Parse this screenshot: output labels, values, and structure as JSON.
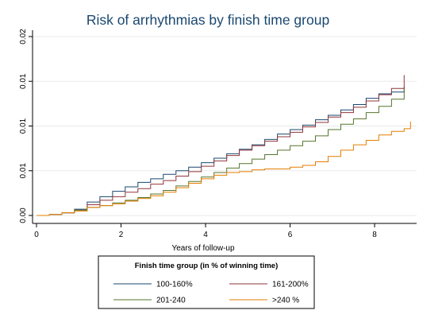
{
  "chart_data": {
    "type": "line",
    "title": "Risk of arrhythmias by finish time group",
    "xlabel": "Years of follow-up",
    "ylabel": "",
    "xlim": [
      0,
      8.9
    ],
    "ylim": [
      0,
      0.02
    ],
    "x_ticks": [
      0,
      2,
      4,
      6,
      8
    ],
    "x_tick_labels": [
      "0",
      "2",
      "4",
      "6",
      "8"
    ],
    "y_ticks": [
      0,
      0.005,
      0.01,
      0.015,
      0.02
    ],
    "y_tick_labels": [
      "0.00",
      "0.01",
      "0.01",
      "0.01",
      "0.02"
    ],
    "grid": true,
    "legend": {
      "title": "Finish time group (in % of winning time)",
      "position": "bottom"
    },
    "series": [
      {
        "name": "100-160%",
        "color": "#1a476f",
        "x": [
          0.0,
          0.3,
          0.6,
          0.9,
          1.2,
          1.5,
          1.8,
          2.1,
          2.4,
          2.7,
          3.0,
          3.3,
          3.6,
          3.9,
          4.2,
          4.5,
          4.8,
          5.1,
          5.4,
          5.7,
          6.0,
          6.3,
          6.6,
          6.9,
          7.2,
          7.5,
          7.8,
          8.1,
          8.4,
          8.7
        ],
        "values": [
          0.0,
          0.0001,
          0.0003,
          0.0007,
          0.0015,
          0.0021,
          0.0027,
          0.0032,
          0.0037,
          0.0041,
          0.0046,
          0.005,
          0.0054,
          0.0059,
          0.0064,
          0.0069,
          0.0074,
          0.0079,
          0.0085,
          0.0091,
          0.0096,
          0.0101,
          0.0107,
          0.0112,
          0.0118,
          0.0124,
          0.0131,
          0.0136,
          0.0138,
          0.0144
        ]
      },
      {
        "name": "161-200%",
        "color": "#90353b",
        "x": [
          0.0,
          0.3,
          0.6,
          0.9,
          1.2,
          1.5,
          1.8,
          2.1,
          2.4,
          2.7,
          3.0,
          3.3,
          3.6,
          3.9,
          4.2,
          4.5,
          4.8,
          5.1,
          5.4,
          5.7,
          6.0,
          6.3,
          6.6,
          6.9,
          7.2,
          7.5,
          7.8,
          8.1,
          8.4,
          8.7
        ],
        "values": [
          0.0,
          0.0001,
          0.0003,
          0.0006,
          0.0012,
          0.0017,
          0.0021,
          0.0026,
          0.003,
          0.0035,
          0.0039,
          0.0044,
          0.0049,
          0.0055,
          0.0061,
          0.0067,
          0.0073,
          0.0078,
          0.0083,
          0.0088,
          0.0093,
          0.0099,
          0.0104,
          0.011,
          0.0115,
          0.0121,
          0.0128,
          0.0135,
          0.0142,
          0.0157
        ]
      },
      {
        "name": "201-240",
        "color": "#55752f",
        "x": [
          0.0,
          0.3,
          0.6,
          0.9,
          1.2,
          1.5,
          1.8,
          2.1,
          2.4,
          2.7,
          3.0,
          3.3,
          3.6,
          3.9,
          4.2,
          4.5,
          4.8,
          5.1,
          5.4,
          5.7,
          6.0,
          6.3,
          6.6,
          6.9,
          7.2,
          7.5,
          7.8,
          8.1,
          8.4,
          8.7
        ],
        "values": [
          0.0,
          0.0001,
          0.0003,
          0.0006,
          0.0009,
          0.0011,
          0.0014,
          0.0017,
          0.002,
          0.0024,
          0.0028,
          0.0033,
          0.0038,
          0.0043,
          0.0048,
          0.0053,
          0.0058,
          0.0063,
          0.0068,
          0.0073,
          0.0078,
          0.0083,
          0.0089,
          0.0096,
          0.0102,
          0.0108,
          0.0115,
          0.0122,
          0.013,
          0.0142
        ]
      },
      {
        "name": ">240 %",
        "color": "#e37e00",
        "x": [
          0.0,
          0.3,
          0.6,
          0.9,
          1.2,
          1.5,
          1.8,
          2.1,
          2.4,
          2.7,
          3.0,
          3.3,
          3.6,
          3.9,
          4.2,
          4.5,
          4.8,
          5.1,
          5.4,
          5.7,
          6.0,
          6.3,
          6.6,
          6.9,
          7.2,
          7.5,
          7.8,
          8.1,
          8.4,
          8.7,
          8.85
        ],
        "values": [
          0.0,
          0.0001,
          0.0003,
          0.0005,
          0.0009,
          0.0011,
          0.0013,
          0.0016,
          0.0019,
          0.0022,
          0.0026,
          0.0031,
          0.0036,
          0.0041,
          0.0045,
          0.0048,
          0.0049,
          0.0051,
          0.0052,
          0.0052,
          0.0054,
          0.0056,
          0.006,
          0.0066,
          0.0073,
          0.0079,
          0.0084,
          0.009,
          0.0094,
          0.0097,
          0.0105
        ]
      }
    ]
  }
}
